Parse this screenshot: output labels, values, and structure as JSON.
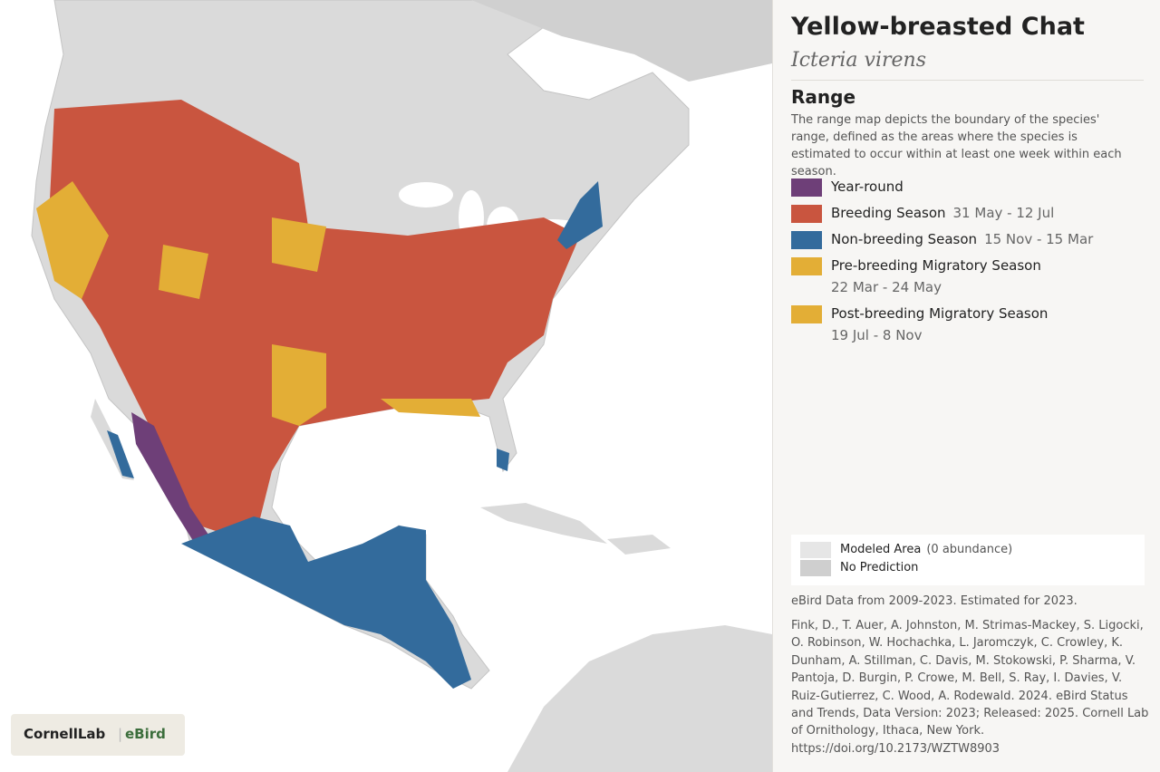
{
  "header": {
    "title": "Yellow-breasted Chat",
    "scientific_name": "Icteria virens"
  },
  "range": {
    "heading": "Range",
    "description": "The range map depicts the boundary of the species' range, defined as the areas where the species is estimated to occur within at least one week within each season.",
    "legend": [
      {
        "label": "Year-round",
        "color": "#6e3f78"
      },
      {
        "label": "Breeding Season",
        "dates": "31 May - 12 Jul",
        "color": "#c9553f"
      },
      {
        "label": "Non-breeding Season",
        "dates": "15 Nov - 15 Mar",
        "color": "#336b9c"
      },
      {
        "label": "Pre-breeding Migratory Season",
        "dates": "22 Mar - 24 May",
        "color": "#e3ae36"
      },
      {
        "label": "Post-breeding Migratory Season",
        "dates": "19 Jul - 8 Nov",
        "color": "#e3ae36"
      }
    ]
  },
  "abundance_legend": [
    {
      "label": "Modeled Area",
      "note": "(0 abundance)",
      "color": "#e6e6e6"
    },
    {
      "label": "No Prediction",
      "color": "#cfcfcf"
    }
  ],
  "data_note": "eBird Data from 2009-2023. Estimated for 2023.",
  "citation": "Fink, D., T. Auer, A. Johnston, M. Strimas-Mackey, S. Ligocki, O. Robinson, W. Hochachka, L. Jaromczyk, C. Crowley, K. Dunham, A. Stillman, C. Davis, M. Stokowski, P. Sharma, V. Pantoja, D. Burgin, P. Crowe, M. Bell, S. Ray, I. Davies, V. Ruiz-Gutierrez, C. Wood, A. Rodewald. 2024. eBird Status and Trends, Data Version: 2023; Released: 2025. Cornell Lab of Ornithology, Ithaca, New York. https://doi.org/10.2173/WZTW8903",
  "logo": {
    "left": "CornellLab",
    "right": "eBird"
  }
}
